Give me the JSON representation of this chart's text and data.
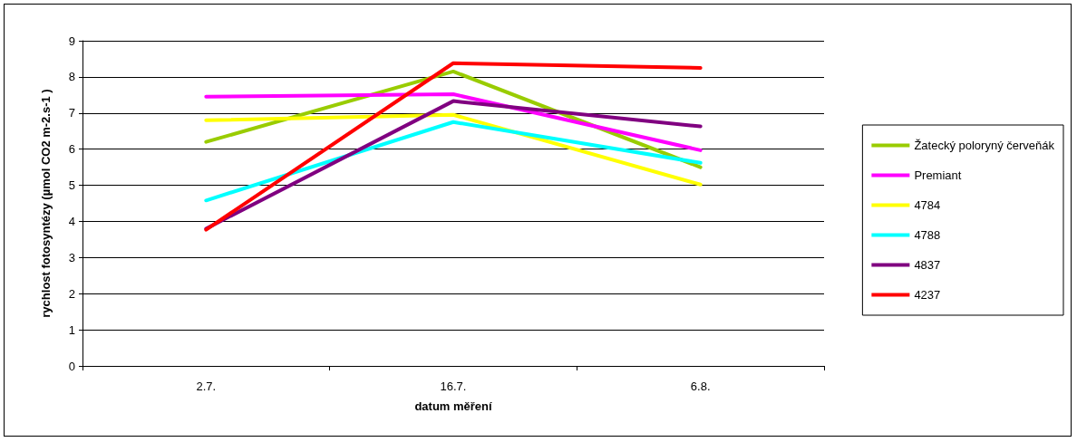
{
  "chart_data": {
    "type": "line",
    "xlabel": "datum měření",
    "ylabel": "rychlost fotosyntézy (µmol CO2 m-2.s-1 )",
    "categories": [
      "2.7.",
      "16.7.",
      "6.8."
    ],
    "series": [
      {
        "name": "Žatecký poloryný červeňák",
        "color": "#99cc00",
        "values": [
          6.2,
          8.15,
          5.5
        ]
      },
      {
        "name": "Premiant",
        "color": "#ff00ff",
        "values": [
          7.45,
          7.52,
          5.97
        ]
      },
      {
        "name": "4784",
        "color": "#ffff00",
        "values": [
          6.8,
          6.95,
          5.02
        ]
      },
      {
        "name": "4788",
        "color": "#00ffff",
        "values": [
          4.58,
          6.75,
          5.62
        ]
      },
      {
        "name": "4837",
        "color": "#800080",
        "values": [
          3.8,
          7.33,
          6.63
        ]
      },
      {
        "name": "4237",
        "color": "#ff0000",
        "values": [
          3.77,
          8.38,
          8.25
        ]
      }
    ],
    "ylim": [
      0,
      9
    ],
    "yticks": [
      0,
      1,
      2,
      3,
      4,
      5,
      6,
      7,
      8,
      9
    ],
    "grid": "y",
    "legend": "right",
    "line_style": "solid"
  }
}
